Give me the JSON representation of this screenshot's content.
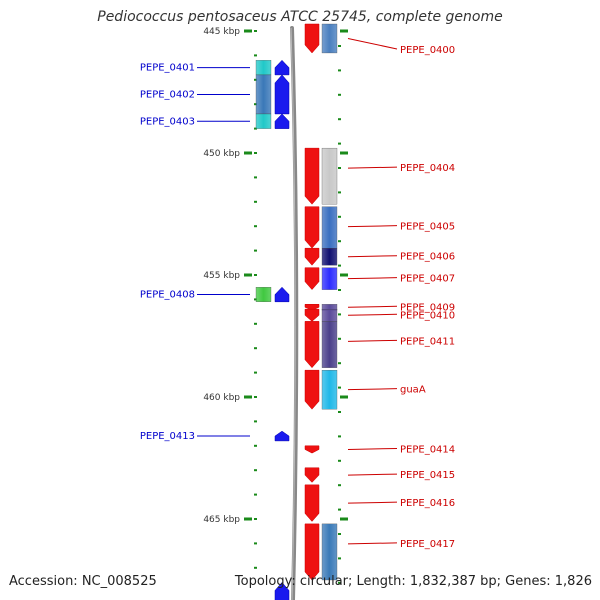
{
  "title": "Pediococcus pentosaceus ATCC 25745, complete genome",
  "footer": {
    "accession": "Accession: NC_008525",
    "topology": "Topology: circular; Length: 1,832,387 bp; Genes: 1,826"
  },
  "map": {
    "start_kbp": 444.5,
    "end_kbp": 468.0,
    "tick_labels": [
      "445 kbp",
      "450 kbp",
      "455 kbp",
      "460 kbp",
      "465 kbp"
    ],
    "tick_values_kbp": [
      445,
      450,
      455,
      460,
      465
    ]
  },
  "colors": {
    "forward_strand": "#ee1111",
    "reverse_strand": "#1a1aee",
    "forward_label": "#cc0000",
    "reverse_label": "#0000cc",
    "backbone": "#888888",
    "tick": "#1a8a1a"
  },
  "genes": [
    {
      "name": "PEPE_0400",
      "strand": "+",
      "start_kbp": 444.3,
      "end_kbp": 445.9,
      "cog_color": "#4a7fbf"
    },
    {
      "name": "PEPE_0401",
      "strand": "-",
      "start_kbp": 446.2,
      "end_kbp": 446.8,
      "cog_color": "#20c8c8"
    },
    {
      "name": "PEPE_0402",
      "strand": "-",
      "start_kbp": 446.8,
      "end_kbp": 448.4,
      "cog_color": "#3a78b8"
    },
    {
      "name": "PEPE_0403",
      "strand": "-",
      "start_kbp": 448.4,
      "end_kbp": 449.0,
      "cog_color": "#20c8c8"
    },
    {
      "name": "PEPE_0404",
      "strand": "+",
      "start_kbp": 449.8,
      "end_kbp": 452.1,
      "cog_color": "#c8c8c8"
    },
    {
      "name": "PEPE_0405",
      "strand": "+",
      "start_kbp": 452.2,
      "end_kbp": 453.9,
      "cog_color": "#3a6fc0"
    },
    {
      "name": "PEPE_0406",
      "strand": "+",
      "start_kbp": 453.9,
      "end_kbp": 454.6,
      "cog_color": "#101070"
    },
    {
      "name": "PEPE_0407",
      "strand": "+",
      "start_kbp": 454.7,
      "end_kbp": 455.6,
      "cog_color": "#2d2dff"
    },
    {
      "name": "PEPE_0408",
      "strand": "-",
      "start_kbp": 455.5,
      "end_kbp": 456.1,
      "cog_color": "#40c840"
    },
    {
      "name": "PEPE_0409",
      "strand": "+",
      "start_kbp": 456.2,
      "end_kbp": 456.4,
      "cog_color": "#5a4a9a"
    },
    {
      "name": "PEPE_0410",
      "strand": "+",
      "start_kbp": 456.4,
      "end_kbp": 456.9,
      "cog_color": "#5a4a9a"
    },
    {
      "name": "PEPE_0411",
      "strand": "+",
      "start_kbp": 456.9,
      "end_kbp": 458.8,
      "cog_color": "#4a3f8a"
    },
    {
      "name": "guaA",
      "strand": "+",
      "start_kbp": 458.9,
      "end_kbp": 460.5,
      "cog_color": "#20b8e8"
    },
    {
      "name": "PEPE_0413",
      "strand": "-",
      "start_kbp": 461.4,
      "end_kbp": 461.8,
      "cog_color": ""
    },
    {
      "name": "PEPE_0414",
      "strand": "+",
      "start_kbp": 462.0,
      "end_kbp": 462.3,
      "cog_color": ""
    },
    {
      "name": "PEPE_0415",
      "strand": "+",
      "start_kbp": 462.9,
      "end_kbp": 463.5,
      "cog_color": ""
    },
    {
      "name": "PEPE_0416",
      "strand": "+",
      "start_kbp": 463.6,
      "end_kbp": 465.1,
      "cog_color": ""
    },
    {
      "name": "PEPE_0417",
      "strand": "+",
      "start_kbp": 465.2,
      "end_kbp": 467.5,
      "cog_color": "#3a7ab8"
    },
    {
      "name": "",
      "strand": "-",
      "start_kbp": 467.6,
      "end_kbp": 468.5,
      "cog_color": ""
    }
  ]
}
